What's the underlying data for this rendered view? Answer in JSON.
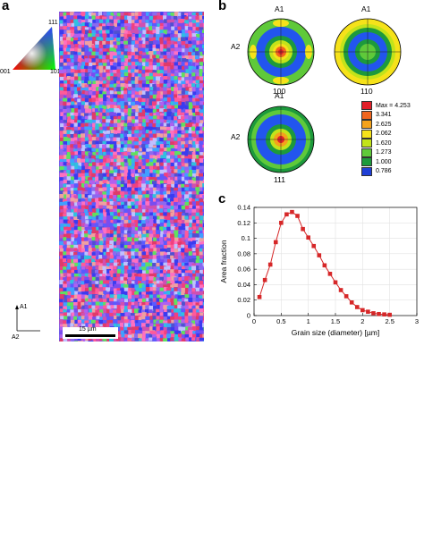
{
  "panels": {
    "a": {
      "letter": "a",
      "ipf_key": {
        "top": "111",
        "left": "001",
        "right": "101"
      },
      "axes": {
        "vertical": "A1",
        "horizontal": "A2"
      },
      "scale_bar": "15 µm"
    },
    "b": {
      "letter": "b",
      "pole_figures": [
        {
          "caption": "100",
          "label_top": "A1",
          "label_left": "A2"
        },
        {
          "caption": "110",
          "label_top": "A1",
          "label_left": ""
        },
        {
          "caption": "111",
          "label_top": "A1",
          "label_left": "A2"
        }
      ],
      "legend": [
        {
          "label": "Max = 4.253",
          "color": "#e3202a"
        },
        {
          "label": "3.341",
          "color": "#f0651f"
        },
        {
          "label": "2.625",
          "color": "#f4a21c"
        },
        {
          "label": "2.062",
          "color": "#f6e21a"
        },
        {
          "label": "1.620",
          "color": "#c2e31a"
        },
        {
          "label": "1.273",
          "color": "#5fc93a"
        },
        {
          "label": "1.000",
          "color": "#1d9a3c"
        },
        {
          "label": "0.786",
          "color": "#1f3fd6"
        }
      ]
    },
    "c": {
      "letter": "c"
    }
  },
  "chart_data": {
    "type": "line",
    "title": "",
    "xlabel": "Grain size (diameter) [µm]",
    "ylabel": "Area fraction",
    "xlim": [
      0,
      3
    ],
    "ylim": [
      0,
      0.14
    ],
    "xticks": [
      "0",
      "0.5",
      "1",
      "1.5",
      "2",
      "2.5",
      "3"
    ],
    "yticks": [
      "0",
      "0.02",
      "0.04",
      "0.06",
      "0.08",
      "0.1",
      "0.12",
      "0.14"
    ],
    "grid": true,
    "color": "#d62728",
    "x": [
      0.1,
      0.2,
      0.3,
      0.4,
      0.5,
      0.6,
      0.7,
      0.8,
      0.9,
      1.0,
      1.1,
      1.2,
      1.3,
      1.4,
      1.5,
      1.6,
      1.7,
      1.8,
      1.9,
      2.0,
      2.1,
      2.2,
      2.3,
      2.4,
      2.5
    ],
    "y": [
      0.024,
      0.046,
      0.066,
      0.095,
      0.12,
      0.131,
      0.134,
      0.129,
      0.112,
      0.101,
      0.09,
      0.078,
      0.065,
      0.054,
      0.043,
      0.033,
      0.025,
      0.017,
      0.011,
      0.007,
      0.005,
      0.003,
      0.002,
      0.0015,
      0.001
    ]
  }
}
